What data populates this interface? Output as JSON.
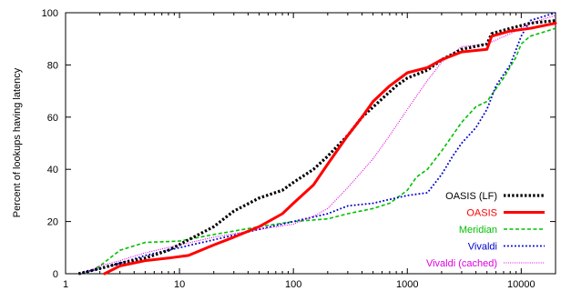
{
  "chart_data": {
    "type": "line",
    "title": "",
    "xlabel": "",
    "ylabel": "Percent of lookups having latency",
    "xscale": "log",
    "xlim": [
      1,
      20000
    ],
    "ylim": [
      0,
      100
    ],
    "x_ticks": [
      1,
      10,
      100,
      1000,
      10000
    ],
    "x_tick_labels": [
      "1",
      "10",
      "100",
      "1000",
      "10000"
    ],
    "y_ticks": [
      0,
      20,
      40,
      60,
      80,
      100
    ],
    "y_tick_labels": [
      "0",
      "20",
      "40",
      "60",
      "80",
      "100"
    ],
    "grid": false,
    "legend_position": "bottom-right",
    "series": [
      {
        "name": "OASIS (LF)",
        "color": "#000000",
        "style": "dotted-thick",
        "x": [
          1.3,
          2,
          3,
          5,
          8,
          12,
          20,
          30,
          50,
          80,
          100,
          150,
          200,
          300,
          400,
          600,
          800,
          1000,
          1500,
          2000,
          3000,
          5000,
          5500,
          8000,
          12000,
          20000
        ],
        "y": [
          0,
          2,
          4,
          6,
          9,
          13,
          18,
          24,
          29,
          32,
          35,
          40,
          45,
          53,
          60,
          67,
          72,
          75,
          78,
          82,
          86,
          88,
          92,
          94,
          96,
          97
        ]
      },
      {
        "name": "OASIS",
        "color": "#ff0000",
        "style": "solid-thick",
        "x": [
          2.2,
          3,
          5,
          8,
          12,
          20,
          30,
          50,
          80,
          100,
          150,
          200,
          300,
          400,
          500,
          700,
          1000,
          1500,
          2000,
          3000,
          5000,
          5500,
          8000,
          12000,
          20000
        ],
        "y": [
          0,
          3,
          5,
          6,
          7,
          11,
          14,
          18,
          23,
          27,
          34,
          42,
          53,
          60,
          66,
          72,
          77,
          79,
          82,
          85,
          86,
          91,
          93,
          94,
          96
        ]
      },
      {
        "name": "Meridian",
        "color": "#00c000",
        "style": "dashed",
        "x": [
          1.5,
          2,
          3,
          5,
          10,
          20,
          50,
          100,
          200,
          300,
          500,
          700,
          1000,
          1200,
          1500,
          2000,
          3000,
          4000,
          5000,
          7000,
          9000,
          10000,
          12000,
          20000
        ],
        "y": [
          0,
          3,
          9,
          12,
          12.5,
          15,
          18,
          20,
          21,
          23,
          25,
          27,
          32,
          37,
          40,
          47,
          58,
          64,
          66,
          75,
          83,
          88,
          91,
          94
        ]
      },
      {
        "name": "Vivaldi",
        "color": "#0000cc",
        "style": "dotted",
        "x": [
          1.3,
          2,
          3,
          5,
          10,
          20,
          50,
          100,
          200,
          300,
          500,
          1000,
          1500,
          2000,
          2500,
          3000,
          4000,
          5000,
          6000,
          8000,
          10000,
          12000,
          20000
        ],
        "y": [
          0,
          2,
          4,
          7,
          10,
          13,
          17,
          20,
          23,
          26,
          27,
          30,
          31,
          38,
          45,
          50,
          56,
          63,
          72,
          80,
          91,
          97,
          100
        ]
      },
      {
        "name": "Vivaldi (cached)",
        "color": "#e000e0",
        "style": "fine-dotted",
        "x": [
          1.5,
          2,
          3,
          5,
          10,
          20,
          50,
          100,
          150,
          200,
          300,
          500,
          700,
          1000,
          1500,
          2000,
          3000,
          5000,
          8000,
          12000,
          20000
        ],
        "y": [
          0,
          3,
          5,
          8,
          11,
          14,
          17,
          19,
          22,
          25,
          33,
          44,
          53,
          63,
          74,
          81,
          87,
          88,
          92,
          96,
          99
        ]
      }
    ]
  }
}
